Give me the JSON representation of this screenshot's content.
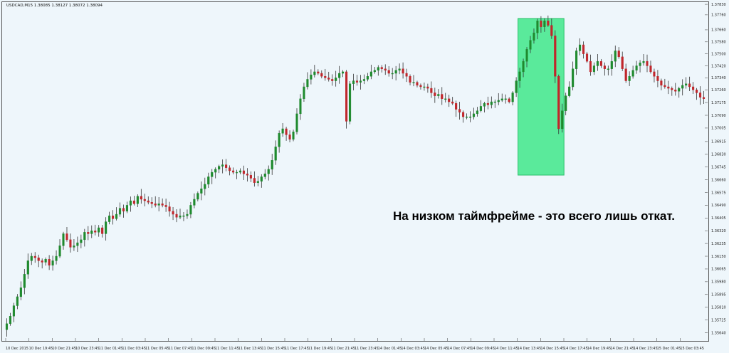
{
  "window": {
    "symbol_info": "USDCAD,M15  1.38085 1.38127 1.38072 1.38094"
  },
  "annotation": {
    "text": "На низком таймфрейме - это всего лишь откат."
  },
  "colors": {
    "background": "#eef6fb",
    "bull": "#1f8a2e",
    "bear": "#c0262b",
    "wick": "#333333",
    "highlight": "#3fe88a",
    "highlight_border": "#2bbf6a"
  },
  "chart_data": {
    "type": "candlestick",
    "symbol": "USDCAD",
    "timeframe": "M15",
    "ylim": [
      1.3559,
      1.3784
    ],
    "y_ticks": [
      "1.37830",
      "1.37760",
      "1.37660",
      "1.37580",
      "1.37500",
      "1.37420",
      "1.37340",
      "1.37260",
      "1.37175",
      "1.37090",
      "1.37005",
      "1.36915",
      "1.36830",
      "1.36745",
      "1.36660",
      "1.36575",
      "1.36490",
      "1.36405",
      "1.36320",
      "1.36235",
      "1.36150",
      "1.36065",
      "1.35980",
      "1.35895",
      "1.35810",
      "1.35725",
      "1.35640"
    ],
    "x_ticks": [
      "10 Dec 2015",
      "10 Dec 19:45",
      "10 Dec 21:45",
      "10 Dec 23:45",
      "11 Dec 01:45",
      "11 Dec 03:45",
      "11 Dec 05:45",
      "11 Dec 07:45",
      "11 Dec 09:45",
      "11 Dec 11:45",
      "11 Dec 13:45",
      "11 Dec 15:45",
      "11 Dec 17:45",
      "11 Dec 19:45",
      "11 Dec 21:45",
      "11 Dec 23:45",
      "14 Dec 01:45",
      "14 Dec 03:45",
      "14 Dec 05:45",
      "14 Dec 07:45",
      "14 Dec 09:45",
      "14 Dec 11:45",
      "14 Dec 13:45",
      "14 Dec 15:45",
      "14 Dec 17:45",
      "14 Dec 19:45",
      "14 Dec 21:45",
      "14 Dec 23:45",
      "15 Dec 01:45",
      "15 Dec 03:45"
    ],
    "highlight": {
      "from_bar": 145,
      "to_bar": 157,
      "label": ""
    },
    "closes": [
      1.357,
      1.3575,
      1.3582,
      1.3588,
      1.3594,
      1.3603,
      1.3612,
      1.3615,
      1.3614,
      1.3612,
      1.3611,
      1.3613,
      1.3609,
      1.3612,
      1.3615,
      1.3622,
      1.363,
      1.3626,
      1.3621,
      1.3622,
      1.3624,
      1.3626,
      1.3631,
      1.363,
      1.3632,
      1.3631,
      1.3634,
      1.363,
      1.3638,
      1.3642,
      1.364,
      1.3643,
      1.3647,
      1.3645,
      1.3649,
      1.3652,
      1.365,
      1.3655,
      1.3653,
      1.3652,
      1.3651,
      1.365,
      1.3649,
      1.365,
      1.3649,
      1.3648,
      1.3645,
      1.3643,
      1.3641,
      1.3642,
      1.3642,
      1.3643,
      1.3649,
      1.3653,
      1.3657,
      1.366,
      1.3663,
      1.3668,
      1.3671,
      1.3673,
      1.3675,
      1.3676,
      1.3674,
      1.3672,
      1.3671,
      1.3671,
      1.3672,
      1.367,
      1.3669,
      1.3667,
      1.3664,
      1.3665,
      1.3668,
      1.367,
      1.3673,
      1.3679,
      1.3688,
      1.3697,
      1.37,
      1.3696,
      1.3693,
      1.3698,
      1.371,
      1.372,
      1.3728,
      1.3733,
      1.3736,
      1.3738,
      1.3737,
      1.3735,
      1.3734,
      1.3733,
      1.3732,
      1.3734,
      1.3737,
      1.3738,
      1.3705,
      1.373,
      1.3732,
      1.3731,
      1.3732,
      1.3733,
      1.3735,
      1.3738,
      1.3739,
      1.3741,
      1.374,
      1.3739,
      1.3737,
      1.3737,
      1.3739,
      1.374,
      1.3737,
      1.3735,
      1.3731,
      1.3731,
      1.3729,
      1.3728,
      1.3728,
      1.3727,
      1.3724,
      1.3722,
      1.3723,
      1.372,
      1.372,
      1.3718,
      1.3717,
      1.3713,
      1.3711,
      1.3708,
      1.3708,
      1.3708,
      1.371,
      1.3712,
      1.3715,
      1.3717,
      1.3716,
      1.3718,
      1.3718,
      1.3719,
      1.372,
      1.372,
      1.3718,
      1.3724,
      1.3732,
      1.3738,
      1.3745,
      1.3753,
      1.3759,
      1.3764,
      1.3772,
      1.3768,
      1.3772,
      1.3769,
      1.3762,
      1.3735,
      1.37,
      1.3712,
      1.3722,
      1.3728,
      1.374,
      1.3752,
      1.3756,
      1.375,
      1.3745,
      1.3738,
      1.3742,
      1.3745,
      1.3742,
      1.374,
      1.374,
      1.3745,
      1.3752,
      1.3748,
      1.374,
      1.3732,
      1.3735,
      1.3739,
      1.3742,
      1.3744,
      1.3745,
      1.3742,
      1.3738,
      1.3735,
      1.3732,
      1.3729,
      1.3728,
      1.3727,
      1.3726,
      1.3725,
      1.3727,
      1.3729,
      1.373,
      1.3728,
      1.3726,
      1.3724,
      1.3721,
      1.372
    ]
  }
}
